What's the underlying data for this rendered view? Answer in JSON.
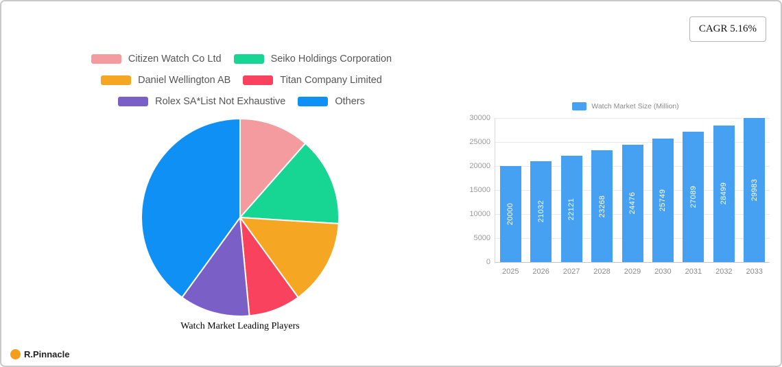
{
  "badge": {
    "cagr": "CAGR 5.16%"
  },
  "logo": {
    "name": "R.Pinnacle"
  },
  "chart_data": [
    {
      "type": "pie",
      "title": "Watch Market Leading Players",
      "legend_position": "top",
      "slices": [
        {
          "label": "Citizen Watch Co  Ltd",
          "value": 11.5,
          "color": "#f49ba0"
        },
        {
          "label": "Seiko Holdings Corporation",
          "value": 14.5,
          "color": "#17d592"
        },
        {
          "label": "Daniel Wellington AB",
          "value": 14.0,
          "color": "#f5a623"
        },
        {
          "label": "Titan Company Limited",
          "value": 8.5,
          "color": "#f9435e"
        },
        {
          "label": "Rolex SA*List Not Exhaustive",
          "value": 11.5,
          "color": "#7a5fc7"
        },
        {
          "label": "Others",
          "value": 40.0,
          "color": "#0e90f5"
        }
      ]
    },
    {
      "type": "bar",
      "title": "Watch Market Size (Million)",
      "categories": [
        "2025",
        "2026",
        "2027",
        "2028",
        "2029",
        "2030",
        "2031",
        "2032",
        "2033"
      ],
      "values": [
        20000,
        21032,
        22121,
        23268,
        24476,
        25749,
        27089,
        28499,
        29983
      ],
      "bar_color": "#46a1f2",
      "ylim": [
        0,
        30000
      ],
      "yticks": [
        0,
        5000,
        10000,
        15000,
        20000,
        25000,
        30000
      ],
      "grid": true,
      "value_labels": "rotated-inside-bar",
      "legend_position": "top"
    }
  ]
}
